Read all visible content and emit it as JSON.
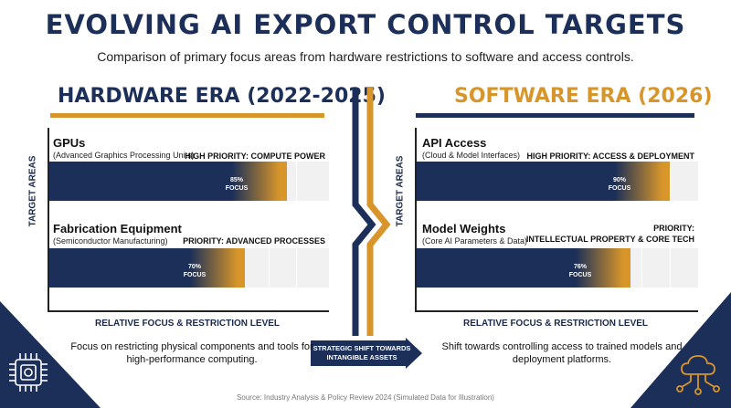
{
  "title": "EVOLVING AI EXPORT CONTROL TARGETS",
  "subtitle": "Comparison of primary focus areas from hardware restrictions to software and access controls.",
  "colors": {
    "navy": "#1c2f58",
    "gold": "#d8962a",
    "track": "#f1f1f1"
  },
  "icons": [
    "chip-icon",
    "cloud-network-icon",
    "chevron-arrow-icon"
  ],
  "shift_arrow": {
    "line1": "STRATEGIC SHIFT TOWARDS",
    "line2": "INTANGIBLE ASSETS"
  },
  "source": "Source: Industry Analysis & Policy Review 2024 (Simulated Data for Illustration)",
  "chart_data": [
    {
      "type": "bar",
      "title": "HARDWARE ERA (2022-2025)",
      "xlabel": "RELATIVE FOCUS & RESTRICTION LEVEL",
      "ylabel": "TARGET AREAS",
      "xlim": [
        0,
        100
      ],
      "orientation": "horizontal",
      "description": "Focus on restricting physical components and tools for high-performance computing.",
      "items": [
        {
          "name": "GPUs",
          "sub": "(Advanced Graphics Processing Units)",
          "priority": "HIGH PRIORITY: COMPUTE POWER",
          "value": 85,
          "label_pct": "85%",
          "label_word": "FOCUS"
        },
        {
          "name": "Fabrication Equipment",
          "sub": "(Semiconductor Manufacturing)",
          "priority": "PRIORITY: ADVANCED PROCESSES",
          "value": 70,
          "label_pct": "70%",
          "label_word": "FOCUS"
        }
      ]
    },
    {
      "type": "bar",
      "title": "SOFTWARE ERA (2026)",
      "xlabel": "RELATIVE FOCUS & RESTRICTION LEVEL",
      "ylabel": "TARGET AREAS",
      "xlim": [
        0,
        100
      ],
      "orientation": "horizontal",
      "description": "Shift towards controlling access to trained models and deployment platforms.",
      "items": [
        {
          "name": "API Access",
          "sub": "(Cloud & Model Interfaces)",
          "priority": "HIGH PRIORITY: ACCESS & DEPLOYMENT",
          "value": 90,
          "label_pct": "90%",
          "label_word": "FOCUS"
        },
        {
          "name": "Model Weights",
          "sub": "(Core AI Parameters & Data)",
          "priority_line1": "PRIORITY:",
          "priority_line2": "INTELLECTUAL PROPERTY & CORE TECH",
          "value": 76,
          "label_pct": "76%",
          "label_word": "FOCUS"
        }
      ]
    }
  ]
}
